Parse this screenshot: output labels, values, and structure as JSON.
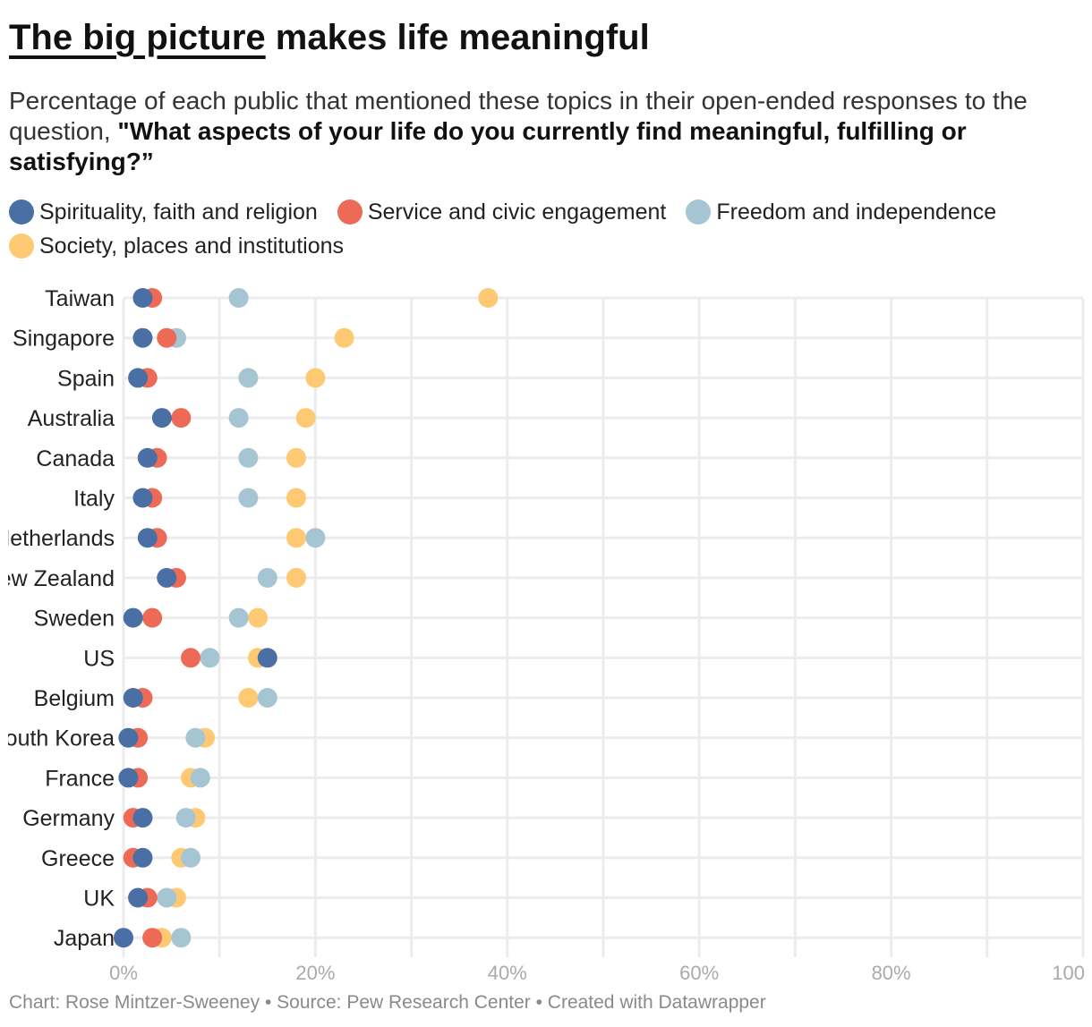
{
  "title": {
    "highlight": "The big picture",
    "rest": " makes life meaningful"
  },
  "subtitle": {
    "plain": "Percentage of each public that mentioned these topics in their open-ended responses to the question, ",
    "bold": "\"What aspects of your life do you currently find meaningful, fulfilling or satisfying?”"
  },
  "legend": [
    {
      "label": "Spirituality, faith and religion",
      "color": "#4a6fa5"
    },
    {
      "label": "Service and civic engagement",
      "color": "#ed6a57"
    },
    {
      "label": "Freedom and independence",
      "color": "#a5c5d3"
    },
    {
      "label": "Society, places and institutions",
      "color": "#fec972"
    }
  ],
  "footer": "Chart: Rose Mintzer-Sweeney • Source: Pew Research Center • Created with Datawrapper",
  "chart_data": {
    "type": "scatter",
    "orientation": "horizontal dot plot",
    "x_range": [
      0,
      100
    ],
    "x_ticks": [
      0,
      20,
      40,
      60,
      80,
      100
    ],
    "x_tick_labels": [
      "0%",
      "20%",
      "40%",
      "60%",
      "80%",
      "100"
    ],
    "grid": true,
    "categories": [
      "Taiwan",
      "Singapore",
      "Spain",
      "Australia",
      "Canada",
      "Italy",
      "Netherlands",
      "New Zealand",
      "Sweden",
      "US",
      "Belgium",
      "South Korea",
      "France",
      "Germany",
      "Greece",
      "UK",
      "Japan"
    ],
    "series": [
      {
        "name": "Society, places and institutions",
        "color": "#fec972",
        "values": [
          38,
          23,
          20,
          19,
          18,
          18,
          18,
          18,
          14,
          14,
          13,
          8.5,
          7,
          7.5,
          6,
          5.5,
          4
        ]
      },
      {
        "name": "Freedom and independence",
        "color": "#a5c5d3",
        "values": [
          12,
          5.5,
          13,
          12,
          13,
          13,
          20,
          15,
          12,
          9,
          15,
          7.5,
          8,
          6.5,
          7,
          4.5,
          6
        ]
      },
      {
        "name": "Service and civic engagement",
        "color": "#ed6a57",
        "values": [
          3,
          4.5,
          2.5,
          6,
          3.5,
          3,
          3.5,
          5.5,
          3,
          7,
          2,
          1.5,
          1.5,
          1,
          1,
          2.5,
          3
        ]
      },
      {
        "name": "Spirituality, faith and religion",
        "color": "#4a6fa5",
        "values": [
          2,
          2,
          1.5,
          4,
          2.5,
          2,
          2.5,
          4.5,
          1,
          15,
          1,
          0.5,
          0.5,
          2,
          2,
          1.5,
          0
        ]
      }
    ]
  }
}
